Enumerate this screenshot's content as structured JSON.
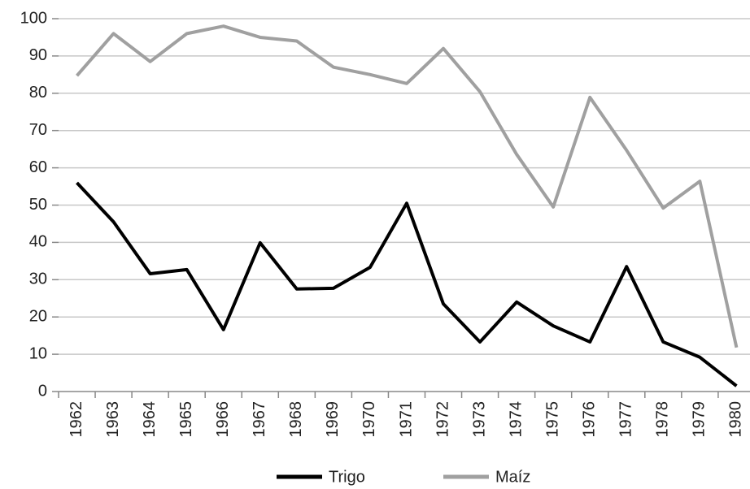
{
  "chart_data": {
    "type": "line",
    "categories": [
      "1962",
      "1963",
      "1964",
      "1965",
      "1966",
      "1967",
      "1968",
      "1969",
      "1970",
      "1971",
      "1972",
      "1973",
      "1974",
      "1975",
      "1976",
      "1977",
      "1978",
      "1979",
      "1980"
    ],
    "series": [
      {
        "name": "Trigo",
        "color": "#000000",
        "values": [
          56,
          45.5,
          31.6,
          32.7,
          16.6,
          39.9,
          27.5,
          27.7,
          33.3,
          50.5,
          23.5,
          13.3,
          24,
          17.6,
          13.3,
          33.5,
          13.3,
          9.2,
          1.5
        ]
      },
      {
        "name": "Maíz",
        "color": "#a0a0a0",
        "values": [
          84.7,
          96,
          88.5,
          96,
          98,
          95,
          94,
          87,
          85,
          82.6,
          92,
          80.4,
          63.6,
          49.5,
          78.9,
          64.7,
          49.2,
          56.4,
          11.8
        ]
      }
    ],
    "ylim": [
      0,
      100
    ],
    "yticks": [
      0,
      10,
      20,
      30,
      40,
      50,
      60,
      70,
      80,
      90,
      100
    ],
    "grid": true,
    "legend": "bottom"
  }
}
